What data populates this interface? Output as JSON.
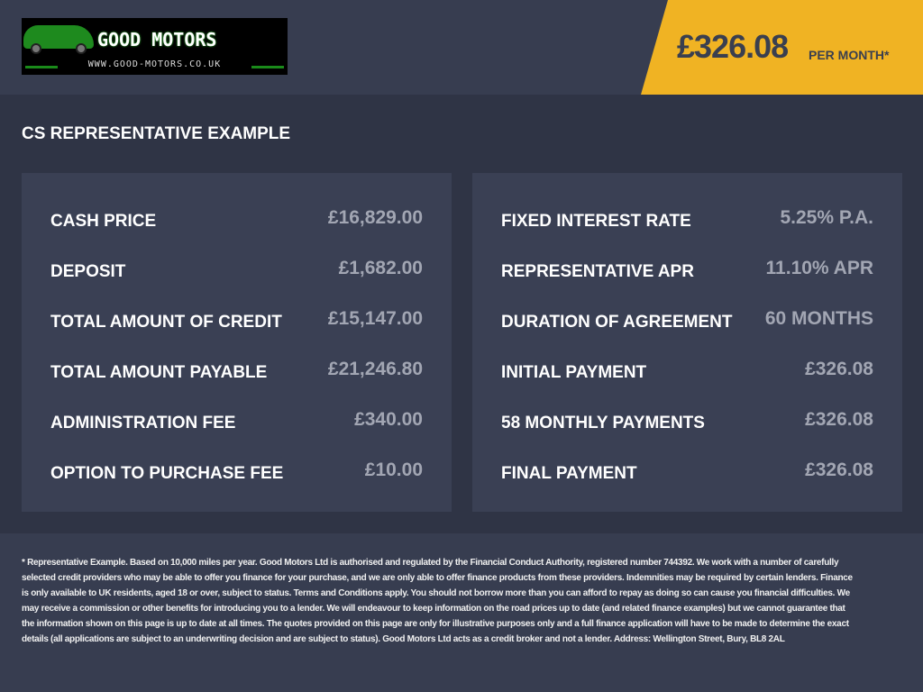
{
  "header": {
    "logo_text": "GOOD MOTORS",
    "logo_url": "WWW.GOOD-MOTORS.CO.UK",
    "monthly_price": "£326.08",
    "per_month": "PER MONTH*"
  },
  "section_title": "CS REPRESENTATIVE EXAMPLE",
  "left_panel": [
    {
      "label": "CASH PRICE",
      "value": "£16,829.00"
    },
    {
      "label": "DEPOSIT",
      "value": "£1,682.00"
    },
    {
      "label": "TOTAL AMOUNT OF CREDIT",
      "value": "£15,147.00"
    },
    {
      "label": "TOTAL AMOUNT PAYABLE",
      "value": "£21,246.80"
    },
    {
      "label": "ADMINISTRATION FEE",
      "value": "£340.00"
    },
    {
      "label": "OPTION TO PURCHASE FEE",
      "value": "£10.00"
    }
  ],
  "right_panel": [
    {
      "label": "FIXED INTEREST RATE",
      "value": "5.25% P.A."
    },
    {
      "label": "REPRESENTATIVE APR",
      "value": "11.10% APR"
    },
    {
      "label": "DURATION OF AGREEMENT",
      "value": "60 MONTHS"
    },
    {
      "label": "INITIAL PAYMENT",
      "value": "£326.08"
    },
    {
      "label": "58 MONTHLY PAYMENTS",
      "value": "£326.08"
    },
    {
      "label": "FINAL PAYMENT",
      "value": "£326.08"
    }
  ],
  "footer_lines": [
    "* Representative Example. Based on 10,000 miles per year. Good Motors Ltd is authorised and regulated by the Financial Conduct Authority, registered number 744392. We work with a number of carefully selected",
    "credit providers who may be able to offer you finance for your purchase, and we are only able to offer finance products from these providers. Indemnities may be required by certain lenders. Finance is only",
    "available to UK residents, aged 18 or over, subject to status. Terms and Conditions apply. You should not borrow more than you can afford to repay as doing so can cause you financial difficulties. We may",
    "receive a commission or other benefits for introducing you to a lender. We will endeavour to keep information on the road prices up to date (and related finance examples) but we cannot guarantee that the",
    "information shown on this page is up to date at all times. The quotes provided on this page are only for illustrative purposes only and a full finance application will have to be made to determine the exact",
    "details (all applications are subject to an underwriting decision and are subject to status). Good Motors Ltd acts as a credit broker and not a lender. Address: Wellington Street, Bury, BL8 2AL"
  ],
  "colors": {
    "accent": "#f0b323",
    "background": "#2f3445",
    "panel": "#3a4054",
    "value_text": "#a2a6b3"
  }
}
